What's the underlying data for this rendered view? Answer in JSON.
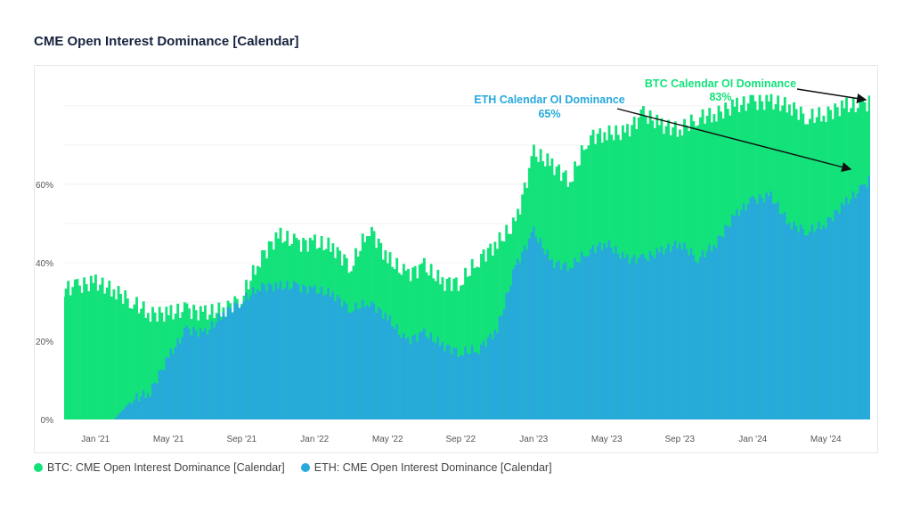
{
  "chart_data": {
    "type": "area",
    "title": "CME Open Interest Dominance [Calendar]",
    "xlabel": "",
    "ylabel": "",
    "ylim": [
      0,
      90
    ],
    "yticks": [
      "0%",
      "20%",
      "40%",
      "60%"
    ],
    "ytick_values": [
      0,
      20,
      40,
      60
    ],
    "grid": true,
    "xticks": [
      "Jan '21",
      "May '21",
      "Sep '21",
      "Jan '22",
      "May '22",
      "Sep '22",
      "Jan '23",
      "May '23",
      "Sep '23",
      "Jan '24",
      "May '24"
    ],
    "xtick_month_index": [
      2,
      6,
      10,
      14,
      18,
      22,
      26,
      30,
      34,
      38,
      42
    ],
    "x": [
      "2020-11",
      "2020-12",
      "2021-01",
      "2021-02",
      "2021-03",
      "2021-04",
      "2021-05",
      "2021-06",
      "2021-07",
      "2021-08",
      "2021-09",
      "2021-10",
      "2021-11",
      "2021-12",
      "2022-01",
      "2022-02",
      "2022-03",
      "2022-04",
      "2022-05",
      "2022-06",
      "2022-07",
      "2022-08",
      "2022-09",
      "2022-10",
      "2022-11",
      "2022-12",
      "2023-01",
      "2023-02",
      "2023-03",
      "2023-04",
      "2023-05",
      "2023-06",
      "2023-07",
      "2023-08",
      "2023-09",
      "2023-10",
      "2023-11",
      "2023-12",
      "2024-01",
      "2024-02",
      "2024-03",
      "2024-04",
      "2024-05",
      "2024-06",
      "2024-07",
      "2024-08"
    ],
    "series": [
      {
        "name": "BTC: CME Open Interest Dominance [Calendar]",
        "color": "#13e27a",
        "values": [
          33,
          34,
          35,
          33,
          30,
          27,
          27,
          28,
          27,
          28,
          31,
          41,
          47,
          45,
          45,
          44,
          39,
          49,
          41,
          37,
          39,
          35,
          35,
          41,
          45,
          50,
          68,
          65,
          61,
          72,
          73,
          73,
          78,
          75,
          74,
          77,
          78,
          80,
          81,
          81,
          80,
          77,
          78,
          80,
          80,
          83
        ]
      },
      {
        "name": "ETH: CME Open Interest Dominance [Calendar]",
        "color": "#27a9dc",
        "values": [
          0,
          0,
          0,
          0,
          5,
          7,
          16,
          23,
          22,
          27,
          30,
          34,
          34,
          34,
          33,
          32,
          28,
          30,
          26,
          20,
          22,
          19,
          17,
          18,
          23,
          39,
          48,
          40,
          39,
          43,
          45,
          41,
          41,
          43,
          45,
          41,
          45,
          52,
          56,
          57,
          50,
          48,
          50,
          55,
          59,
          65
        ]
      }
    ],
    "annotations": [
      {
        "text": "BTC Calendar OI Dominance",
        "value": "83%",
        "color": "#13e27a"
      },
      {
        "text": "ETH Calendar OI Dominance",
        "value": "65%",
        "color": "#27a9dc"
      }
    ],
    "legend": "bottom-left"
  }
}
